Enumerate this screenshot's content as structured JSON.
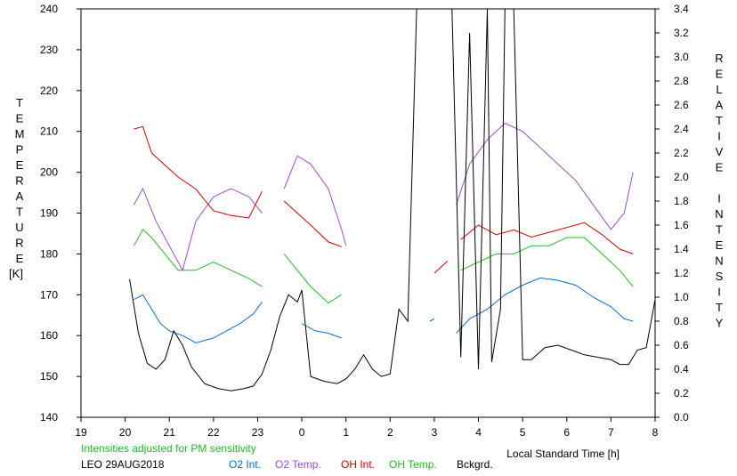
{
  "chart_data": {
    "type": "line",
    "title": "",
    "station": "LEO 29AUG2018",
    "note": "Intensities adjusted for PM sensitivity",
    "ylabel_left": "TEMPERATURE",
    "ylabel_left_unit": "[K]",
    "ylabel_right": "RELATIVE INTENSITY",
    "xlabel": "Local Standard Time [h]",
    "ylim_left": [
      140,
      240
    ],
    "ylim_right": [
      0.0,
      3.4
    ],
    "xlim": [
      19,
      32
    ],
    "x_ticks": [
      19,
      20,
      21,
      22,
      23,
      24,
      25,
      26,
      27,
      28,
      29,
      30,
      31,
      32
    ],
    "x_tick_labels": [
      "19",
      "20",
      "21",
      "22",
      "23",
      "0",
      "1",
      "2",
      "3",
      "4",
      "5",
      "6",
      "7",
      "8"
    ],
    "y_ticks_left": [
      140,
      150,
      160,
      170,
      180,
      190,
      200,
      210,
      220,
      230,
      240
    ],
    "y_tick_labels_left": [
      "140",
      "150",
      "160",
      "170",
      "180",
      "190",
      "200",
      "210",
      "220",
      "230",
      "240"
    ],
    "y_ticks_right": [
      0.0,
      0.2,
      0.4,
      0.6,
      0.8,
      1.0,
      1.2,
      1.4,
      1.6,
      1.8,
      2.0,
      2.2,
      2.4,
      2.6,
      2.8,
      3.0,
      3.2,
      3.4
    ],
    "y_tick_labels_right": [
      "0.0",
      "0.2",
      "0.4",
      "0.6",
      "0.8",
      "1.0",
      "1.2",
      "1.4",
      "1.6",
      "1.8",
      "2.0",
      "2.2",
      "2.4",
      "2.6",
      "2.8",
      "3.0",
      "3.2",
      "3.4"
    ],
    "legend": [
      {
        "key": "o2_int",
        "label": "O2 Int.",
        "color": "#0a6ad0"
      },
      {
        "key": "o2_temp",
        "label": "O2 Temp.",
        "color": "#9b4fc8"
      },
      {
        "key": "oh_int",
        "label": "OH Int.",
        "color": "#d40000"
      },
      {
        "key": "oh_temp",
        "label": "OH Temp.",
        "color": "#22bb22"
      },
      {
        "key": "bckgrd",
        "label": "Bckgrd.",
        "color": "#000000"
      }
    ],
    "series": [
      {
        "name": "O2 Int.",
        "axis": "right",
        "color": "#0a6ad0",
        "segments": [
          [
            [
              20.2,
              0.98
            ],
            [
              20.4,
              1.02
            ],
            [
              20.6,
              0.9
            ],
            [
              20.8,
              0.78
            ],
            [
              21.0,
              0.72
            ],
            [
              21.3,
              0.68
            ],
            [
              21.6,
              0.62
            ],
            [
              22.0,
              0.66
            ],
            [
              22.3,
              0.72
            ],
            [
              22.6,
              0.78
            ],
            [
              22.9,
              0.86
            ],
            [
              23.1,
              0.96
            ]
          ],
          [
            [
              24.0,
              0.78
            ],
            [
              24.3,
              0.72
            ],
            [
              24.6,
              0.7
            ],
            [
              24.9,
              0.66
            ]
          ],
          [
            [
              26.9,
              0.8
            ],
            [
              27.0,
              0.82
            ]
          ],
          [
            [
              27.5,
              0.7
            ],
            [
              27.8,
              0.82
            ],
            [
              28.2,
              0.9
            ],
            [
              28.6,
              1.02
            ],
            [
              29.0,
              1.1
            ],
            [
              29.4,
              1.16
            ],
            [
              29.8,
              1.14
            ],
            [
              30.2,
              1.1
            ],
            [
              30.6,
              1.0
            ],
            [
              31.0,
              0.92
            ],
            [
              31.3,
              0.82
            ],
            [
              31.5,
              0.8
            ]
          ]
        ]
      },
      {
        "name": "O2 Temp.",
        "axis": "left",
        "color": "#9b4fc8",
        "segments": [
          [
            [
              20.2,
              192
            ],
            [
              20.4,
              196
            ],
            [
              20.7,
              188
            ],
            [
              21.0,
              182
            ],
            [
              21.3,
              176
            ],
            [
              21.6,
              188
            ],
            [
              22.0,
              194
            ],
            [
              22.4,
              196
            ],
            [
              22.8,
              194
            ],
            [
              23.1,
              190
            ]
          ],
          [
            [
              23.6,
              196
            ],
            [
              23.9,
              204
            ],
            [
              24.2,
              202
            ],
            [
              24.6,
              196
            ],
            [
              24.9,
              186
            ],
            [
              25.0,
              182
            ]
          ],
          [
            [
              27.5,
              192
            ],
            [
              27.8,
              202
            ],
            [
              28.2,
              208
            ],
            [
              28.6,
              212
            ],
            [
              29.0,
              210
            ],
            [
              29.4,
              206
            ],
            [
              29.8,
              202
            ],
            [
              30.2,
              198
            ],
            [
              30.6,
              192
            ],
            [
              31.0,
              186
            ],
            [
              31.3,
              190
            ],
            [
              31.5,
              200
            ]
          ]
        ]
      },
      {
        "name": "OH Int.",
        "axis": "right",
        "color": "#d40000",
        "segments": [
          [
            [
              20.2,
              2.4
            ],
            [
              20.4,
              2.42
            ],
            [
              20.6,
              2.2
            ],
            [
              20.9,
              2.1
            ],
            [
              21.2,
              2.0
            ],
            [
              21.6,
              1.9
            ],
            [
              22.0,
              1.72
            ],
            [
              22.4,
              1.68
            ],
            [
              22.8,
              1.66
            ],
            [
              23.1,
              1.88
            ]
          ],
          [
            [
              23.6,
              1.8
            ],
            [
              23.9,
              1.7
            ],
            [
              24.2,
              1.6
            ],
            [
              24.6,
              1.46
            ],
            [
              24.9,
              1.42
            ]
          ],
          [
            [
              27.0,
              1.2
            ],
            [
              27.3,
              1.3
            ]
          ],
          [
            [
              27.6,
              1.48
            ],
            [
              28.0,
              1.6
            ],
            [
              28.4,
              1.52
            ],
            [
              28.8,
              1.56
            ],
            [
              29.2,
              1.5
            ],
            [
              29.6,
              1.54
            ],
            [
              30.0,
              1.58
            ],
            [
              30.4,
              1.62
            ],
            [
              30.8,
              1.52
            ],
            [
              31.2,
              1.4
            ],
            [
              31.5,
              1.36
            ]
          ]
        ]
      },
      {
        "name": "OH Temp.",
        "axis": "left",
        "color": "#22bb22",
        "segments": [
          [
            [
              20.2,
              182
            ],
            [
              20.4,
              186
            ],
            [
              20.6,
              184
            ],
            [
              20.9,
              180
            ],
            [
              21.2,
              176
            ],
            [
              21.6,
              176
            ],
            [
              22.0,
              178
            ],
            [
              22.4,
              176
            ],
            [
              22.8,
              174
            ],
            [
              23.1,
              172
            ]
          ],
          [
            [
              23.6,
              180
            ],
            [
              23.9,
              176
            ],
            [
              24.2,
              172
            ],
            [
              24.6,
              168
            ],
            [
              24.9,
              170
            ]
          ],
          [
            [
              27.6,
              176
            ],
            [
              28.0,
              178
            ],
            [
              28.4,
              180
            ],
            [
              28.8,
              180
            ],
            [
              29.2,
              182
            ],
            [
              29.6,
              182
            ],
            [
              30.0,
              184
            ],
            [
              30.4,
              184
            ],
            [
              30.8,
              180
            ],
            [
              31.2,
              176
            ],
            [
              31.5,
              172
            ]
          ]
        ]
      },
      {
        "name": "Bckgrd.",
        "axis": "right",
        "color": "#000000",
        "segments": [
          [
            [
              20.1,
              1.15
            ],
            [
              20.3,
              0.7
            ],
            [
              20.5,
              0.45
            ],
            [
              20.7,
              0.4
            ],
            [
              20.9,
              0.48
            ],
            [
              21.1,
              0.72
            ],
            [
              21.3,
              0.6
            ],
            [
              21.5,
              0.42
            ],
            [
              21.8,
              0.28
            ],
            [
              22.1,
              0.24
            ],
            [
              22.4,
              0.22
            ],
            [
              22.7,
              0.24
            ],
            [
              22.9,
              0.26
            ],
            [
              23.1,
              0.36
            ],
            [
              23.3,
              0.56
            ],
            [
              23.5,
              0.84
            ],
            [
              23.7,
              1.02
            ],
            [
              23.9,
              0.96
            ],
            [
              24.0,
              1.06
            ],
            [
              24.2,
              0.34
            ],
            [
              24.5,
              0.3
            ],
            [
              24.8,
              0.28
            ],
            [
              25.0,
              0.32
            ],
            [
              25.2,
              0.4
            ],
            [
              25.4,
              0.52
            ],
            [
              25.6,
              0.4
            ],
            [
              25.8,
              0.34
            ],
            [
              26.0,
              0.36
            ],
            [
              26.2,
              0.9
            ],
            [
              26.4,
              0.8
            ],
            [
              26.6,
              3.4
            ],
            [
              26.8,
              3.4
            ]
          ],
          [
            [
              27.4,
              3.4
            ],
            [
              27.6,
              0.5
            ],
            [
              27.8,
              3.2
            ],
            [
              28.0,
              0.4
            ],
            [
              28.2,
              3.4
            ],
            [
              28.3,
              0.46
            ],
            [
              28.5,
              0.9
            ],
            [
              28.6,
              3.4
            ],
            [
              28.8,
              3.4
            ],
            [
              29.0,
              0.48
            ],
            [
              29.2,
              0.48
            ],
            [
              29.5,
              0.58
            ],
            [
              29.8,
              0.6
            ],
            [
              30.1,
              0.56
            ],
            [
              30.4,
              0.52
            ],
            [
              30.7,
              0.5
            ],
            [
              31.0,
              0.48
            ],
            [
              31.2,
              0.44
            ],
            [
              31.4,
              0.44
            ],
            [
              31.6,
              0.56
            ],
            [
              31.8,
              0.58
            ],
            [
              32.0,
              0.98
            ]
          ]
        ]
      }
    ]
  }
}
